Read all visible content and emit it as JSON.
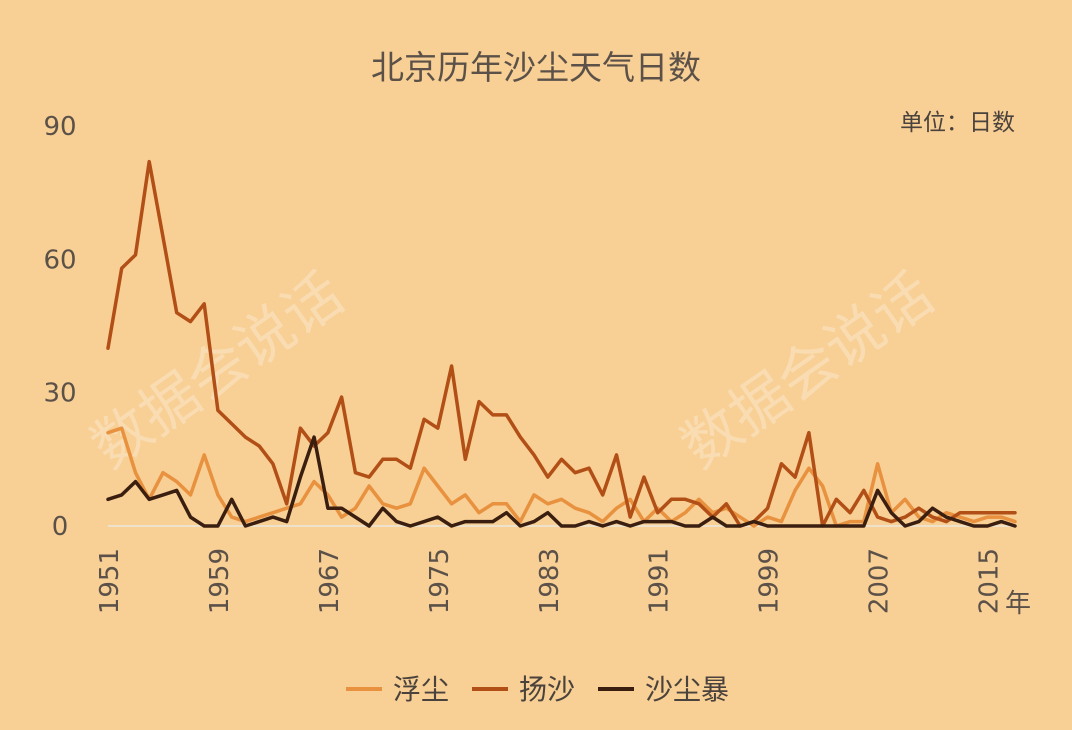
{
  "chart_data": {
    "type": "line",
    "title": "北京历年沙尘天气日数",
    "unit_label": "单位：日数",
    "x_unit": "年",
    "xlim": [
      1951,
      2017
    ],
    "ylim": [
      0,
      90
    ],
    "y_ticks": [
      "0",
      "30",
      "60",
      "90"
    ],
    "x_tick_labels": [
      "1951",
      "1959",
      "1967",
      "1975",
      "1983",
      "1991",
      "1999",
      "2007",
      "2015"
    ],
    "x": [
      1951,
      1952,
      1953,
      1954,
      1955,
      1956,
      1957,
      1958,
      1959,
      1960,
      1961,
      1962,
      1963,
      1964,
      1965,
      1966,
      1967,
      1968,
      1969,
      1970,
      1971,
      1972,
      1973,
      1974,
      1975,
      1976,
      1977,
      1978,
      1979,
      1980,
      1981,
      1982,
      1983,
      1984,
      1985,
      1986,
      1987,
      1988,
      1989,
      1990,
      1991,
      1992,
      1993,
      1994,
      1995,
      1996,
      1997,
      1998,
      1999,
      2000,
      2001,
      2002,
      2003,
      2004,
      2005,
      2006,
      2007,
      2008,
      2009,
      2010,
      2011,
      2012,
      2013,
      2014,
      2015,
      2016,
      2017
    ],
    "series": [
      {
        "name": "浮尘",
        "color": "#e8913e",
        "values": [
          21,
          22,
          12,
          6,
          12,
          10,
          7,
          16,
          7,
          2,
          1,
          2,
          3,
          4,
          5,
          10,
          7,
          2,
          4,
          9,
          5,
          4,
          5,
          13,
          9,
          5,
          7,
          3,
          5,
          5,
          1,
          7,
          5,
          6,
          4,
          3,
          1,
          4,
          6,
          1,
          4,
          1,
          3,
          6,
          3,
          4,
          2,
          0,
          2,
          1,
          8,
          13,
          9,
          0,
          1,
          1,
          14,
          3,
          6,
          2,
          1,
          3,
          2,
          1,
          2,
          2,
          1
        ]
      },
      {
        "name": "扬沙",
        "color": "#b24f17",
        "values": [
          40,
          58,
          61,
          82,
          65,
          48,
          46,
          50,
          26,
          23,
          20,
          18,
          14,
          5,
          22,
          18,
          21,
          29,
          12,
          11,
          15,
          15,
          13,
          24,
          22,
          36,
          15,
          28,
          25,
          25,
          20,
          16,
          11,
          15,
          12,
          13,
          7,
          16,
          2,
          11,
          3,
          6,
          6,
          5,
          2,
          5,
          0,
          1,
          4,
          14,
          11,
          21,
          0,
          6,
          3,
          8,
          2,
          1,
          2,
          4,
          2,
          1,
          3,
          3,
          3,
          3,
          3
        ]
      },
      {
        "name": "沙尘暴",
        "color": "#3a1e10",
        "values": [
          6,
          7,
          10,
          6,
          7,
          8,
          2,
          0,
          0,
          6,
          0,
          1,
          2,
          1,
          11,
          20,
          4,
          4,
          2,
          0,
          4,
          1,
          0,
          1,
          2,
          0,
          1,
          1,
          1,
          3,
          0,
          1,
          3,
          0,
          0,
          1,
          0,
          1,
          0,
          1,
          1,
          1,
          0,
          0,
          2,
          0,
          0,
          1,
          0,
          0,
          0,
          0,
          0,
          0,
          0,
          0,
          8,
          3,
          0,
          1,
          4,
          2,
          1,
          0,
          0,
          1,
          0
        ]
      }
    ],
    "legend_position": "bottom-center"
  },
  "watermark": {
    "text": "数据会说话"
  }
}
